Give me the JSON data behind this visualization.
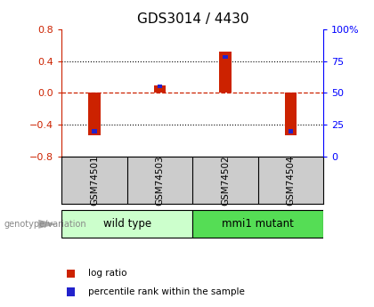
{
  "title": "GDS3014 / 4430",
  "samples": [
    "GSM74501",
    "GSM74503",
    "GSM74502",
    "GSM74504"
  ],
  "log_ratios": [
    -0.53,
    0.1,
    0.52,
    -0.53
  ],
  "percentile_ranks": [
    20,
    55,
    78,
    20
  ],
  "ylim_left": [
    -0.8,
    0.8
  ],
  "ylim_right": [
    0,
    100
  ],
  "left_yticks": [
    -0.8,
    -0.4,
    0.0,
    0.4,
    0.8
  ],
  "right_yticks": [
    0,
    25,
    50,
    75,
    100
  ],
  "right_yticklabels": [
    "0",
    "25",
    "50",
    "75",
    "100%"
  ],
  "hlines_dotted": [
    -0.4,
    0.4
  ],
  "hline_dashed_val": 0.0,
  "groups": [
    {
      "label": "wild type",
      "samples": [
        0,
        1
      ],
      "color": "#ccffcc"
    },
    {
      "label": "mmi1 mutant",
      "samples": [
        2,
        3
      ],
      "color": "#55dd55"
    }
  ],
  "group_label": "genotype/variation",
  "bar_color_red": "#cc2200",
  "bar_color_blue": "#2222cc",
  "legend_red": "log ratio",
  "legend_blue": "percentile rank within the sample",
  "bg_color": "#ffffff",
  "label_area_color": "#cccccc",
  "title_fontsize": 11,
  "red_bar_width": 0.18,
  "blue_bar_width": 0.08
}
